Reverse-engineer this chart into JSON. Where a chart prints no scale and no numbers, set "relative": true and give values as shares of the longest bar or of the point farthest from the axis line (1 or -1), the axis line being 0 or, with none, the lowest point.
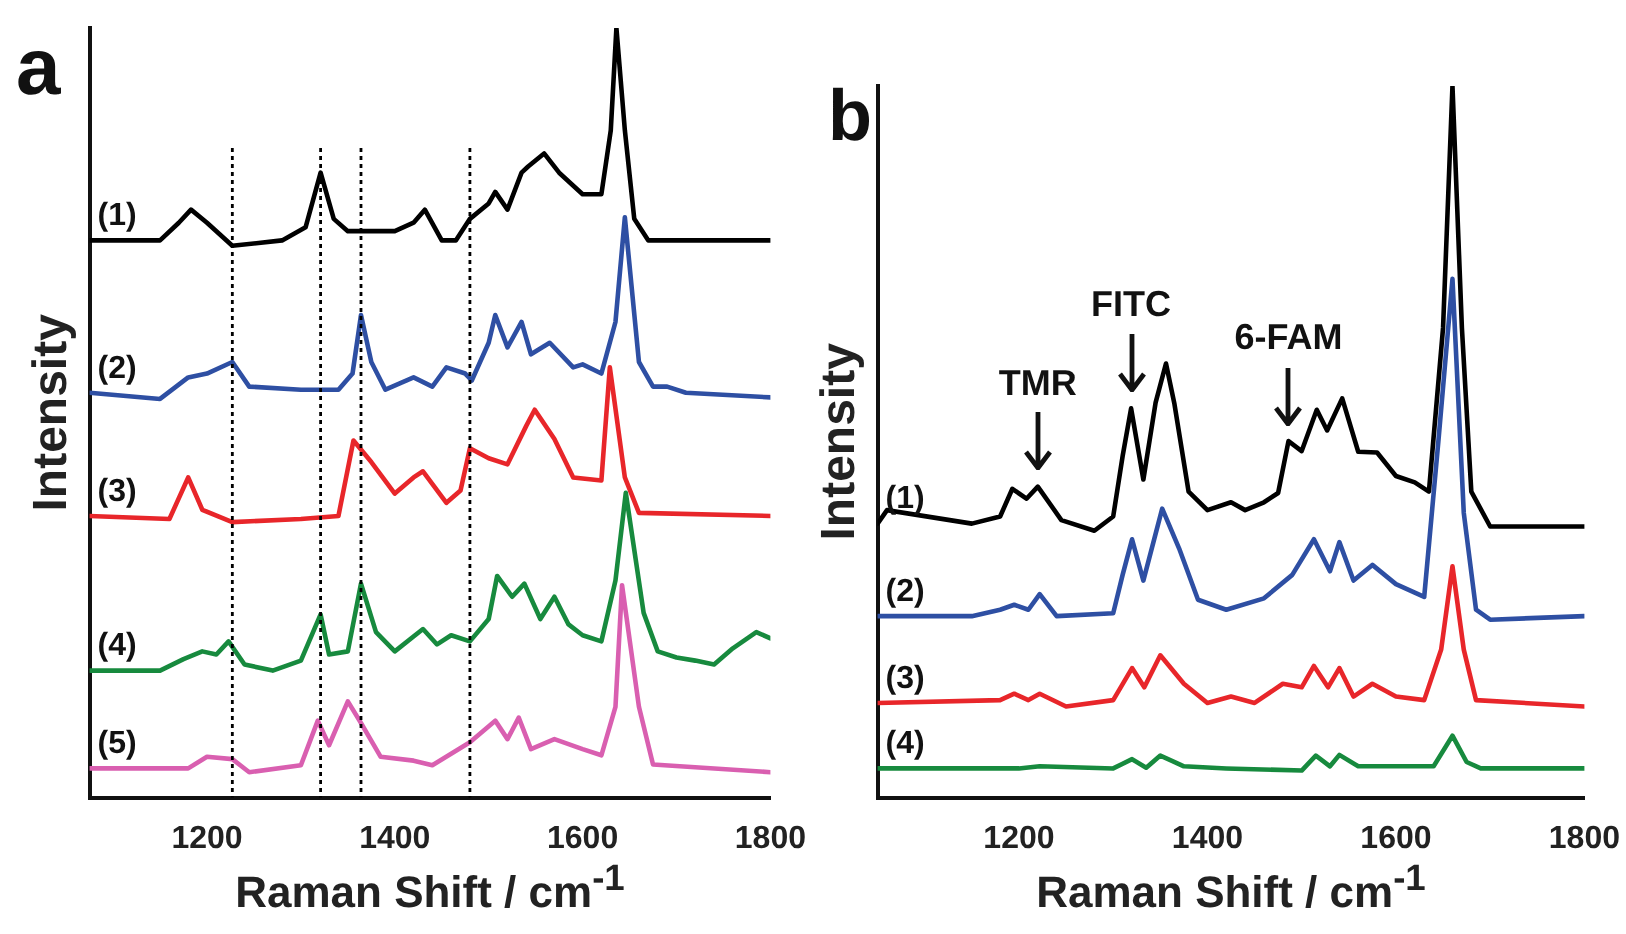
{
  "chart_data": [
    {
      "type": "line",
      "title": "a",
      "xlabel": "Raman Shift / cm$^{-1}$",
      "ylabel": "Intensity",
      "relative": true,
      "xlim": [
        1075,
        1800
      ],
      "xticks": [
        1200,
        1400,
        1600,
        1800
      ],
      "grid": false,
      "legend": false,
      "ref_lines": [
        {
          "axis": "x",
          "value": 1227,
          "color": "#000000",
          "line_style": "dotted"
        },
        {
          "axis": "x",
          "value": 1321,
          "color": "#000000",
          "line_style": "dotted"
        },
        {
          "axis": "x",
          "value": 1364,
          "color": "#000000",
          "line_style": "dotted"
        },
        {
          "axis": "x",
          "value": 1480,
          "color": "#000000",
          "line_style": "dotted"
        }
      ],
      "series": [
        {
          "name": "(1)",
          "color": "#000000",
          "x": [
            1075,
            1150,
            1170,
            1183,
            1200,
            1227,
            1280,
            1305,
            1321,
            1335,
            1350,
            1400,
            1420,
            1432,
            1450,
            1465,
            1480,
            1500,
            1507,
            1520,
            1535,
            1542,
            1559,
            1575,
            1600,
            1620,
            1630,
            1636,
            1645,
            1655,
            1670,
            1800
          ],
          "values": [
            0.724,
            0.724,
            0.747,
            0.764,
            0.747,
            0.717,
            0.724,
            0.741,
            0.812,
            0.752,
            0.736,
            0.736,
            0.747,
            0.764,
            0.724,
            0.724,
            0.752,
            0.772,
            0.787,
            0.764,
            0.812,
            0.82,
            0.837,
            0.812,
            0.784,
            0.784,
            0.867,
            1.0,
            0.867,
            0.752,
            0.724,
            0.724
          ]
        },
        {
          "name": "(2)",
          "color": "#2e4fa3",
          "x": [
            1075,
            1150,
            1180,
            1200,
            1227,
            1245,
            1300,
            1340,
            1355,
            1364,
            1375,
            1390,
            1420,
            1440,
            1455,
            1475,
            1482,
            1500,
            1507,
            1520,
            1535,
            1545,
            1565,
            1590,
            1600,
            1620,
            1635,
            1645,
            1660,
            1675,
            1690,
            1710,
            1800
          ],
          "values": [
            0.526,
            0.518,
            0.546,
            0.551,
            0.566,
            0.534,
            0.53,
            0.53,
            0.551,
            0.627,
            0.566,
            0.53,
            0.546,
            0.534,
            0.559,
            0.551,
            0.542,
            0.591,
            0.627,
            0.585,
            0.618,
            0.576,
            0.591,
            0.559,
            0.563,
            0.551,
            0.618,
            0.754,
            0.566,
            0.534,
            0.534,
            0.526,
            0.52
          ]
        },
        {
          "name": "(3)",
          "color": "#e8262a",
          "x": [
            1075,
            1160,
            1180,
            1195,
            1227,
            1300,
            1340,
            1356,
            1375,
            1400,
            1420,
            1430,
            1455,
            1470,
            1480,
            1500,
            1520,
            1540,
            1549,
            1570,
            1590,
            1620,
            1629,
            1645,
            1660,
            1800
          ],
          "values": [
            0.366,
            0.362,
            0.416,
            0.374,
            0.358,
            0.362,
            0.366,
            0.464,
            0.436,
            0.395,
            0.416,
            0.424,
            0.383,
            0.399,
            0.454,
            0.441,
            0.433,
            0.483,
            0.504,
            0.466,
            0.416,
            0.412,
            0.559,
            0.416,
            0.37,
            0.366
          ]
        },
        {
          "name": "(4)",
          "color": "#178a3e",
          "x": [
            1075,
            1150,
            1175,
            1195,
            1210,
            1223,
            1240,
            1270,
            1300,
            1321,
            1330,
            1350,
            1364,
            1380,
            1400,
            1430,
            1445,
            1460,
            1480,
            1500,
            1509,
            1525,
            1538,
            1555,
            1570,
            1585,
            1600,
            1620,
            1635,
            1646,
            1665,
            1680,
            1700,
            1720,
            1740,
            1760,
            1785,
            1800
          ],
          "values": [
            0.165,
            0.165,
            0.18,
            0.19,
            0.186,
            0.203,
            0.173,
            0.165,
            0.178,
            0.238,
            0.186,
            0.19,
            0.278,
            0.215,
            0.19,
            0.219,
            0.199,
            0.211,
            0.203,
            0.232,
            0.288,
            0.261,
            0.278,
            0.232,
            0.261,
            0.225,
            0.211,
            0.203,
            0.282,
            0.396,
            0.24,
            0.19,
            0.182,
            0.178,
            0.173,
            0.194,
            0.215,
            0.207
          ]
        },
        {
          "name": "(5)",
          "color": "#d95fb0",
          "x": [
            1075,
            1180,
            1200,
            1227,
            1245,
            1300,
            1318,
            1330,
            1350,
            1364,
            1385,
            1420,
            1440,
            1480,
            1507,
            1520,
            1532,
            1545,
            1570,
            1600,
            1620,
            1635,
            1642,
            1660,
            1675,
            1800
          ],
          "values": [
            0.038,
            0.038,
            0.053,
            0.05,
            0.033,
            0.042,
            0.1,
            0.068,
            0.125,
            0.097,
            0.053,
            0.048,
            0.042,
            0.072,
            0.1,
            0.076,
            0.104,
            0.063,
            0.076,
            0.063,
            0.055,
            0.118,
            0.276,
            0.118,
            0.043,
            0.033
          ]
        }
      ]
    },
    {
      "type": "line",
      "title": "b",
      "xlabel": "Raman Shift / cm$^{-1}$",
      "ylabel": "Intensity",
      "relative": true,
      "xlim": [
        1050,
        1800
      ],
      "xticks": [
        1200,
        1400,
        1600,
        1800
      ],
      "grid": false,
      "legend": false,
      "annotations": [
        {
          "text": "TMR",
          "x": 1220,
          "y": 0.437
        },
        {
          "text": "FITC",
          "x": 1319,
          "y": 0.547
        },
        {
          "text": "6-FAM",
          "x": 1486,
          "y": 0.501
        }
      ],
      "series": [
        {
          "name": "(1)",
          "color": "#000000",
          "x": [
            1050,
            1060,
            1150,
            1180,
            1193,
            1208,
            1220,
            1245,
            1280,
            1300,
            1310,
            1319,
            1332,
            1345,
            1356,
            1365,
            1380,
            1400,
            1425,
            1440,
            1460,
            1475,
            1486,
            1500,
            1516,
            1527,
            1543,
            1560,
            1580,
            1600,
            1620,
            1635,
            1650,
            1660,
            1670,
            1680,
            1700,
            1800
          ],
          "values": [
            0.385,
            0.404,
            0.385,
            0.395,
            0.434,
            0.42,
            0.437,
            0.39,
            0.375,
            0.395,
            0.48,
            0.547,
            0.447,
            0.555,
            0.61,
            0.553,
            0.43,
            0.404,
            0.415,
            0.404,
            0.415,
            0.428,
            0.501,
            0.487,
            0.545,
            0.516,
            0.561,
            0.486,
            0.485,
            0.452,
            0.443,
            0.43,
            0.66,
            1.0,
            0.66,
            0.43,
            0.381,
            0.381
          ]
        },
        {
          "name": "(2)",
          "color": "#2e4fa3",
          "x": [
            1050,
            1150,
            1180,
            1195,
            1210,
            1222,
            1240,
            1300,
            1310,
            1320,
            1332,
            1352,
            1370,
            1390,
            1420,
            1460,
            1490,
            1513,
            1530,
            1540,
            1555,
            1575,
            1600,
            1630,
            1645,
            1660,
            1672,
            1685,
            1700,
            1800
          ],
          "values": [
            0.255,
            0.255,
            0.264,
            0.271,
            0.264,
            0.286,
            0.255,
            0.259,
            0.313,
            0.363,
            0.305,
            0.406,
            0.35,
            0.278,
            0.264,
            0.28,
            0.313,
            0.363,
            0.318,
            0.359,
            0.305,
            0.327,
            0.3,
            0.282,
            0.5,
            0.729,
            0.4,
            0.264,
            0.25,
            0.255
          ]
        },
        {
          "name": "(3)",
          "color": "#e8262a",
          "x": [
            1050,
            1180,
            1195,
            1210,
            1222,
            1250,
            1300,
            1320,
            1333,
            1350,
            1375,
            1400,
            1425,
            1450,
            1480,
            1500,
            1513,
            1528,
            1540,
            1555,
            1575,
            1600,
            1630,
            1648,
            1660,
            1672,
            1685,
            1800
          ],
          "values": [
            0.133,
            0.137,
            0.146,
            0.137,
            0.146,
            0.128,
            0.137,
            0.182,
            0.155,
            0.2,
            0.16,
            0.133,
            0.142,
            0.133,
            0.16,
            0.155,
            0.185,
            0.155,
            0.182,
            0.142,
            0.16,
            0.142,
            0.137,
            0.208,
            0.325,
            0.208,
            0.137,
            0.128
          ]
        },
        {
          "name": "(4)",
          "color": "#178a3e",
          "x": [
            1050,
            1200,
            1222,
            1300,
            1320,
            1335,
            1350,
            1375,
            1420,
            1500,
            1515,
            1530,
            1540,
            1560,
            1640,
            1660,
            1675,
            1690,
            1800
          ],
          "values": [
            0.041,
            0.041,
            0.044,
            0.041,
            0.054,
            0.042,
            0.059,
            0.044,
            0.041,
            0.038,
            0.059,
            0.044,
            0.06,
            0.044,
            0.044,
            0.087,
            0.05,
            0.041,
            0.041
          ]
        }
      ]
    }
  ]
}
